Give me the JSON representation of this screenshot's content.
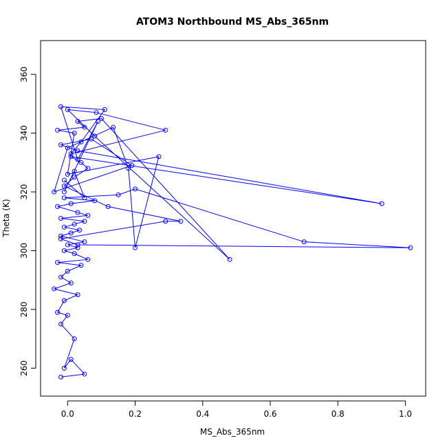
{
  "chart_data": {
    "type": "scatter",
    "title": "ATOM3 Northbound MS_Abs_365nm",
    "xlabel": "MS_Abs_365nm",
    "ylabel": "Theta (K)",
    "xlim": [
      -0.08,
      1.06
    ],
    "ylim": [
      250.5,
      371.5
    ],
    "xticks": [
      0.0,
      0.2,
      0.4,
      0.6,
      0.8,
      1.0
    ],
    "xtick_labels": [
      "0.0",
      "0.2",
      "0.4",
      "0.6",
      "0.8",
      "1.0"
    ],
    "yticks": [
      260,
      280,
      300,
      320,
      340,
      360
    ],
    "ytick_labels": [
      "260",
      "280",
      "300",
      "320",
      "340",
      "360"
    ],
    "grid": false,
    "color": "#0000ff",
    "series": [
      {
        "x": [
          -0.02,
          0.05,
          0.01,
          -0.01,
          0.02,
          -0.02,
          0.0,
          -0.03,
          -0.01,
          0.03,
          -0.04,
          0.01,
          -0.02,
          0.0,
          0.04,
          -0.03,
          0.06,
          0.02,
          -0.01,
          0.03,
          0.0,
          0.05,
          -0.02,
          0.01,
          0.035,
          -0.01,
          0.02,
          0.05,
          -0.02,
          0.06,
          0.03,
          -0.03,
          0.01,
          0.08,
          -0.01,
          0.15,
          0.2,
          0.7,
          1.015,
          0.03,
          -0.02,
          0.29,
          0.335,
          0.12,
          -0.01,
          0.02,
          0.06,
          0.04,
          0.01,
          0.93,
          0.03,
          -0.02,
          0.07,
          0.19,
          -0.04,
          0.0,
          0.135,
          0.18,
          0.2,
          0.27,
          0.0,
          0.02,
          -0.03,
          0.05,
          0.03,
          0.1,
          0.48,
          0.08,
          0.0,
          0.085,
          0.29,
          0.01,
          0.04,
          0.11,
          -0.02,
          0.03,
          0.09,
          -0.01,
          0.02,
          0.05,
          -0.01
        ],
        "y": [
          257,
          258,
          263,
          260,
          270,
          275,
          278,
          279,
          283,
          285,
          287,
          289,
          291,
          293,
          295,
          296,
          297,
          299,
          300,
          301,
          302,
          303,
          305,
          306,
          307,
          308,
          309,
          310,
          311,
          312,
          313,
          315,
          316,
          317,
          318,
          319,
          321,
          303,
          301,
          302,
          304,
          310,
          310,
          315,
          322,
          325,
          328,
          330,
          332,
          316,
          334,
          336,
          338,
          329,
          320,
          335,
          342,
          328,
          301,
          332,
          326,
          340,
          341,
          342,
          344,
          345,
          297,
          339,
          348,
          347,
          341,
          333,
          337,
          348,
          349,
          331,
          344,
          320,
          327,
          318,
          324
        ]
      }
    ]
  }
}
